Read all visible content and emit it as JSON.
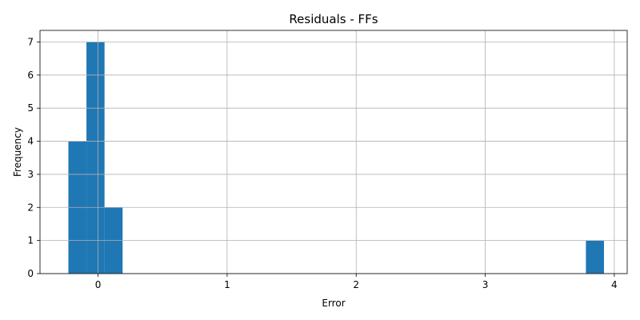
{
  "chart_data": {
    "type": "bar",
    "title": "Residuals - FFs",
    "xlabel": "Error",
    "ylabel": "Frequency",
    "xlim": [
      -0.45,
      4.1
    ],
    "ylim": [
      0,
      7.35
    ],
    "xticks": [
      0,
      1,
      2,
      3,
      4
    ],
    "yticks": [
      0,
      1,
      2,
      3,
      4,
      5,
      6,
      7
    ],
    "grid": true,
    "bar_color": "#1f77b4",
    "bins": [
      {
        "x0": -0.23,
        "x1": -0.09,
        "count": 4
      },
      {
        "x0": -0.09,
        "x1": 0.05,
        "count": 7
      },
      {
        "x0": 0.05,
        "x1": 0.19,
        "count": 2
      },
      {
        "x0": 3.78,
        "x1": 3.92,
        "count": 1
      }
    ]
  }
}
